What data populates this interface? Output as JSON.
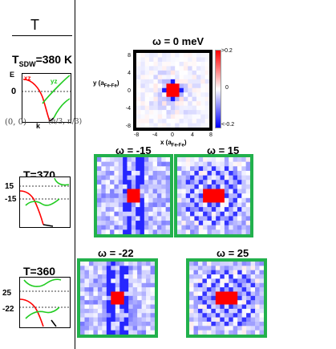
{
  "header": {
    "title": "T"
  },
  "panel_sdw": {
    "temp_main": "T",
    "temp_sub": "SDW",
    "temp_value": "=380 K",
    "axis_e": "E",
    "axis_k": "k",
    "zero_label": "0",
    "band_xz": "xz",
    "band_yz": "yz",
    "k_start": "(0, 0)",
    "k_end": "(π/3, π/3)"
  },
  "panel_370": {
    "temp": "T=370",
    "upper": "15",
    "lower": "-15"
  },
  "panel_360": {
    "temp": "T=360",
    "upper": "25",
    "lower": "-22"
  },
  "main_map": {
    "title": "ω = 0 meV",
    "ylabel_main": "y (a",
    "ylabel_sub": "Fe-Fe",
    "ylabel_end": ")",
    "xlabel_main": "x (a",
    "xlabel_sub": "Fe-Fe",
    "xlabel_end": ")",
    "yticks": [
      "8",
      "4",
      "0",
      "-4",
      "-8"
    ],
    "xticks": [
      "-8",
      "-4",
      "0",
      "4",
      "8"
    ],
    "colorbar": {
      "max": ">0.2",
      "mid": "0",
      "min": "<-0.2"
    }
  },
  "maps": [
    {
      "title": "ω = -15"
    },
    {
      "title": "ω = 15"
    },
    {
      "title": "ω = -22"
    },
    {
      "title": "ω = 25"
    }
  ],
  "colors": {
    "frame_main": "#000000",
    "frame_green": "#22b14c",
    "positive": "#ff0000",
    "negative": "#0000ff",
    "band_red": "#ff0000",
    "band_green": "#22cc22"
  }
}
